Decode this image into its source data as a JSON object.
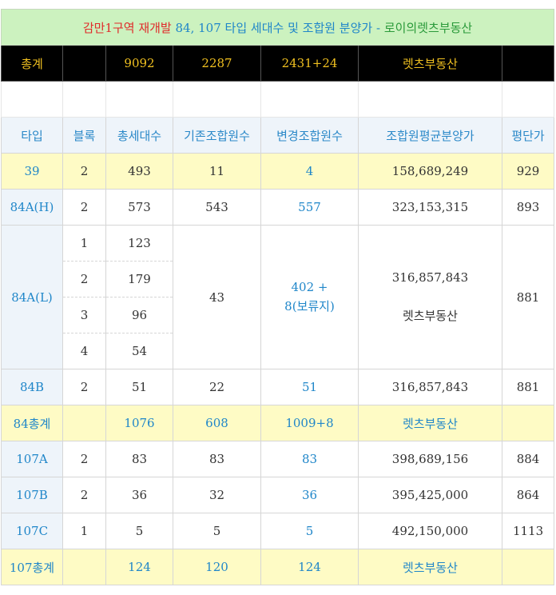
{
  "title": {
    "part1": "감만1구역 재개발",
    "part2": "84, 107 타입 세대수 및 조합원 분양가 - ",
    "part3": "로이의렛츠부동산"
  },
  "total_row": [
    "총계",
    "",
    "9092",
    "2287",
    "2431+24",
    "렛츠부동산",
    ""
  ],
  "headers": [
    "타입",
    "블록",
    "총세대수",
    "기존조합원수",
    "변경조합원수",
    "조합원평균분양가",
    "평단가"
  ],
  "rows": {
    "r39": [
      "39",
      "2",
      "493",
      "11",
      "4",
      "158,689,249",
      "929"
    ],
    "r84ah": [
      "84A(H)",
      "2",
      "573",
      "543",
      "557",
      "323,153,315",
      "893"
    ],
    "r84al": {
      "type": "84A(L)",
      "blocks": [
        "1",
        "2",
        "3",
        "4"
      ],
      "units": [
        "123",
        "179",
        "96",
        "54"
      ],
      "existing": "43",
      "changed_1": "402 +",
      "changed_2": "8(보류지)",
      "price": "316,857,843",
      "price_note": "렛츠부동산",
      "per_pyeong": "881"
    },
    "r84b": [
      "84B",
      "2",
      "51",
      "22",
      "51",
      "316,857,843",
      "881"
    ],
    "sub84": [
      "84총계",
      "",
      "1076",
      "608",
      "1009+8",
      "렛츠부동산",
      ""
    ],
    "r107a": [
      "107A",
      "2",
      "83",
      "83",
      "83",
      "398,689,156",
      "884"
    ],
    "r107b": [
      "107B",
      "2",
      "36",
      "32",
      "36",
      "395,425,000",
      "864"
    ],
    "r107c": [
      "107C",
      "1",
      "5",
      "5",
      "5",
      "492,150,000",
      "1113"
    ],
    "sub107": [
      "107총계",
      "",
      "124",
      "120",
      "124",
      "렛츠부동산",
      ""
    ]
  }
}
